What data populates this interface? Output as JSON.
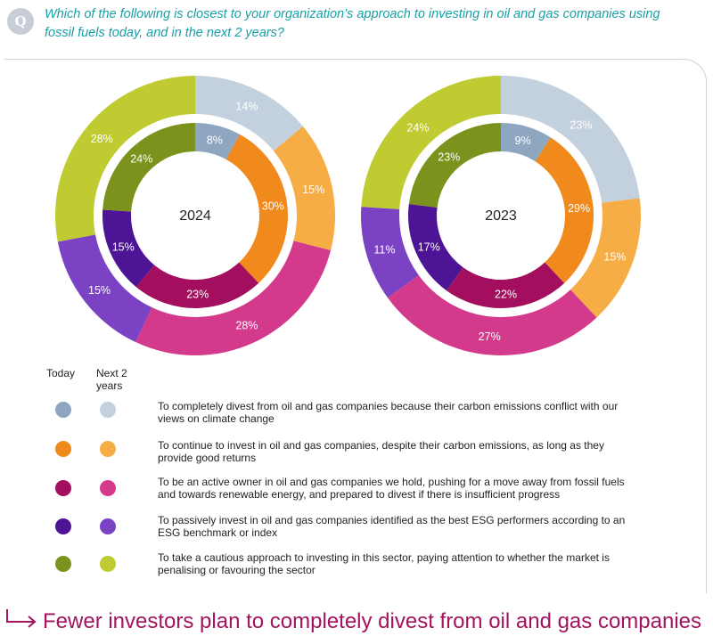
{
  "question": {
    "badge": "Q",
    "text": "Which of the following is closest to your organization’s approach to investing in oil and gas companies using fossil fuels today, and in the next 2 years?"
  },
  "legend": {
    "today_header": "Today",
    "next_header": "Next 2 years",
    "items": [
      {
        "text": "To completely divest from oil and gas companies because their carbon emissions conflict with our views on climate change",
        "color_today": "#8ea6bf",
        "color_next": "#c3d1de"
      },
      {
        "text": "To continue to invest in oil and gas companies, despite their carbon emissions, as long as they provide good returns",
        "color_today": "#f08a1c",
        "color_next": "#f7ad45"
      },
      {
        "text": "To be an active owner in oil and gas companies we hold, pushing for a move away from fossil fuels and towards renewable energy, and prepared to divest if there is insufficient progress",
        "color_today": "#a30f5e",
        "color_next": "#d43a8c"
      },
      {
        "text": "To passively invest in oil and gas companies identified as the best ESG performers according to an ESG benchmark or index",
        "color_today": "#4d1496",
        "color_next": "#7b43c4"
      },
      {
        "text": "To take a cautious approach to investing in this sector, paying attention to whether the market is penalising or favouring the sector",
        "color_today": "#7b921c",
        "color_next": "#bfcb31"
      }
    ]
  },
  "chart_data": [
    {
      "type": "donut",
      "title": "2024",
      "categories": [
        "Completely divest",
        "Continue to invest",
        "Active owner",
        "Passively invest (best ESG)",
        "Cautious approach"
      ],
      "series": [
        {
          "name": "Today",
          "ring": "inner",
          "values": [
            8,
            30,
            23,
            15,
            24
          ],
          "labels": [
            "8%",
            "30%",
            "23%",
            "15%",
            "24%"
          ]
        },
        {
          "name": "Next 2 years",
          "ring": "outer",
          "values": [
            14,
            15,
            28,
            15,
            28
          ],
          "labels": [
            "14%",
            "15%",
            "28%",
            "15%",
            "28%"
          ]
        }
      ]
    },
    {
      "type": "donut",
      "title": "2023",
      "categories": [
        "Completely divest",
        "Continue to invest",
        "Active owner",
        "Passively invest (best ESG)",
        "Cautious approach"
      ],
      "series": [
        {
          "name": "Today",
          "ring": "inner",
          "values": [
            9,
            29,
            22,
            17,
            23
          ],
          "labels": [
            "9%",
            "29%",
            "22%",
            "17%",
            "23%"
          ]
        },
        {
          "name": "Next 2 years",
          "ring": "outer",
          "values": [
            23,
            15,
            27,
            11,
            24
          ],
          "labels": [
            "23%",
            "15%",
            "27%",
            "11%",
            "24%"
          ]
        }
      ]
    }
  ],
  "footer": {
    "text": "Fewer investors plan to completely divest from oil and gas companies",
    "color": "#a3135f"
  }
}
